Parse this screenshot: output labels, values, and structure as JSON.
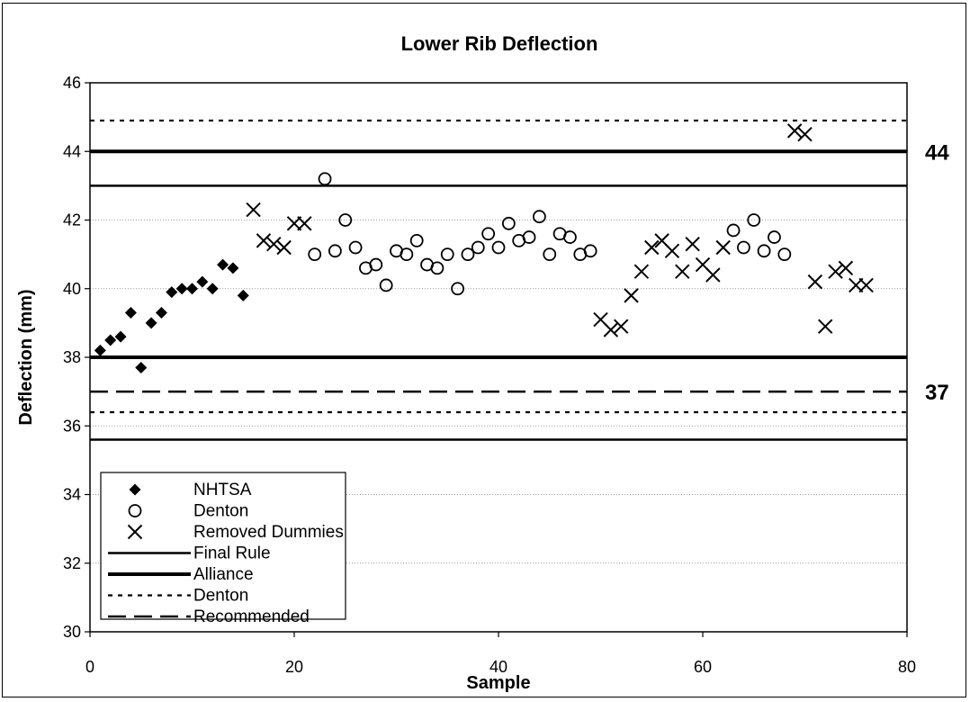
{
  "chart_data": {
    "type": "scatter",
    "title": "Lower Rib Deflection",
    "xlabel": "Sample",
    "ylabel": "Deflection (mm)",
    "xlim": [
      0,
      80
    ],
    "ylim": [
      30,
      46
    ],
    "x_ticks": [
      0,
      20,
      40,
      60,
      80
    ],
    "y_ticks": [
      30,
      32,
      34,
      36,
      38,
      40,
      42,
      44,
      46
    ],
    "grid": "horizontal dotted",
    "legend_position": "bottom-left",
    "series": [
      {
        "name": "NHTSA",
        "marker": "diamond",
        "points": [
          [
            1,
            38.2
          ],
          [
            2,
            38.5
          ],
          [
            3,
            38.6
          ],
          [
            4,
            39.3
          ],
          [
            5,
            37.7
          ],
          [
            6,
            39.0
          ],
          [
            7,
            39.3
          ],
          [
            8,
            39.9
          ],
          [
            9,
            40.0
          ],
          [
            10,
            40.0
          ],
          [
            11,
            40.2
          ],
          [
            12,
            40.0
          ],
          [
            13,
            40.7
          ],
          [
            14,
            40.6
          ],
          [
            15,
            39.8
          ]
        ]
      },
      {
        "name": "Denton",
        "marker": "circle",
        "points": [
          [
            22,
            41.0
          ],
          [
            23,
            43.2
          ],
          [
            24,
            41.1
          ],
          [
            25,
            42.0
          ],
          [
            26,
            41.2
          ],
          [
            27,
            40.6
          ],
          [
            28,
            40.7
          ],
          [
            29,
            40.1
          ],
          [
            30,
            41.1
          ],
          [
            31,
            41.0
          ],
          [
            32,
            41.4
          ],
          [
            33,
            40.7
          ],
          [
            34,
            40.6
          ],
          [
            35,
            41.0
          ],
          [
            36,
            40.0
          ],
          [
            37,
            41.0
          ],
          [
            38,
            41.2
          ],
          [
            39,
            41.6
          ],
          [
            40,
            41.2
          ],
          [
            41,
            41.9
          ],
          [
            42,
            41.4
          ],
          [
            43,
            41.5
          ],
          [
            44,
            42.1
          ],
          [
            45,
            41.0
          ],
          [
            46,
            41.6
          ],
          [
            47,
            41.5
          ],
          [
            48,
            41.0
          ],
          [
            49,
            41.1
          ],
          [
            63,
            41.7
          ],
          [
            64,
            41.2
          ],
          [
            65,
            42.0
          ],
          [
            66,
            41.1
          ],
          [
            67,
            41.5
          ],
          [
            68,
            41.0
          ]
        ]
      },
      {
        "name": "Removed Dummies",
        "marker": "x",
        "points": [
          [
            16,
            42.3
          ],
          [
            17,
            41.4
          ],
          [
            18,
            41.3
          ],
          [
            19,
            41.2
          ],
          [
            20,
            41.9
          ],
          [
            21,
            41.9
          ],
          [
            50,
            39.1
          ],
          [
            51,
            38.8
          ],
          [
            52,
            38.9
          ],
          [
            53,
            39.8
          ],
          [
            54,
            40.5
          ],
          [
            55,
            41.2
          ],
          [
            56,
            41.4
          ],
          [
            57,
            41.1
          ],
          [
            58,
            40.5
          ],
          [
            59,
            41.3
          ],
          [
            60,
            40.7
          ],
          [
            61,
            40.4
          ],
          [
            62,
            41.2
          ],
          [
            69,
            44.6
          ],
          [
            70,
            44.5
          ],
          [
            71,
            40.2
          ],
          [
            72,
            38.9
          ],
          [
            73,
            40.5
          ],
          [
            74,
            40.6
          ],
          [
            75,
            40.1
          ],
          [
            76,
            40.1
          ]
        ]
      }
    ],
    "reference_lines": [
      {
        "name": "Final Rule",
        "style": "solid",
        "values": [
          35.6,
          43.0
        ]
      },
      {
        "name": "Alliance",
        "style": "solid-thick",
        "values": [
          38.0,
          44.0
        ]
      },
      {
        "name": "Denton",
        "style": "dotted",
        "values": [
          36.4,
          44.9
        ]
      },
      {
        "name": "Recommended",
        "style": "dashed",
        "values": [
          37.0
        ]
      }
    ],
    "annotations": [
      {
        "text": "44",
        "y": 44
      },
      {
        "text": "37",
        "y": 37
      }
    ],
    "colors": {
      "marker": "#000000",
      "line": "#000000",
      "grid": "#7f7f7f",
      "background": "#ffffff"
    }
  }
}
